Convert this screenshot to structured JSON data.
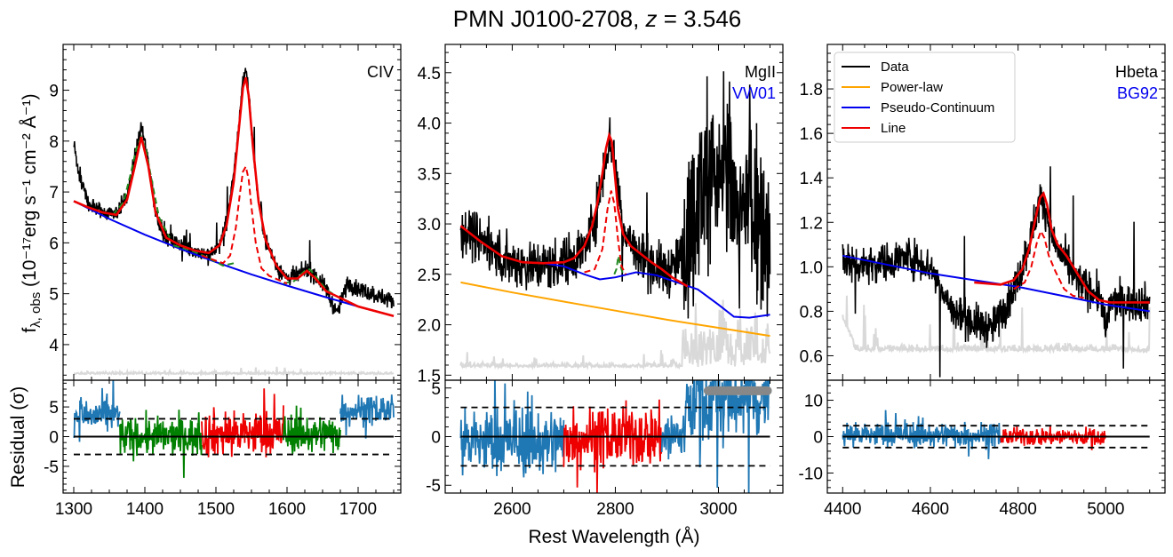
{
  "figure": {
    "title_prefix": "PMN J0100-2708, ",
    "title_z": "z",
    "title_suffix": " = 3.546",
    "xlabel": "Rest Wavelength (Å)",
    "ylabel_main": "f",
    "ylabel_sub": "λ, obs",
    "ylabel_units": " (10⁻¹⁷erg s⁻¹ cm⁻² Å⁻¹)",
    "residual_ylabel": "Residual (σ)"
  },
  "colors": {
    "data": "#000000",
    "powerlaw": "#ffa500",
    "pseudo": "#0000ee",
    "line": "#ee0000",
    "broad_comp": "#228b22",
    "narrow_comp": "#ee0000",
    "error": "#d9d9d9",
    "residual": "#1f77b4",
    "residual_line": "#ee0000",
    "residual_green": "#008000",
    "masked": "#888888"
  },
  "legend": {
    "entries": [
      {
        "label": "Data",
        "color": "#000000"
      },
      {
        "label": "Power-law",
        "color": "#ffa500"
      },
      {
        "label": "Pseudo-Continuum",
        "color": "#0000ee"
      },
      {
        "label": "Line",
        "color": "#ee0000"
      }
    ]
  },
  "chart_data": [
    {
      "type": "line",
      "panel": "CIV",
      "line_label": "CIV",
      "template_label": "",
      "xlim": [
        1285,
        1760
      ],
      "ylim": [
        3.3,
        9.9
      ],
      "xticks": [
        1300,
        1400,
        1500,
        1600,
        1700
      ],
      "yticks": [
        4,
        5,
        6,
        7,
        8,
        9
      ],
      "continuum": {
        "x": [
          1300,
          1350,
          1400,
          1450,
          1500,
          1550,
          1600,
          1650,
          1700,
          1750
        ],
        "y": [
          6.82,
          6.47,
          6.16,
          5.88,
          5.62,
          5.38,
          5.16,
          4.95,
          4.75,
          4.56
        ]
      },
      "model": {
        "x": [
          1300,
          1320,
          1340,
          1360,
          1375,
          1385,
          1395,
          1405,
          1415,
          1430,
          1450,
          1470,
          1490,
          1505,
          1515,
          1525,
          1532,
          1538,
          1542,
          1546,
          1552,
          1560,
          1570,
          1585,
          1600,
          1615,
          1628,
          1640,
          1655,
          1670,
          1700,
          1750
        ],
        "y": [
          6.82,
          6.7,
          6.6,
          6.55,
          6.85,
          7.45,
          8.08,
          7.5,
          6.6,
          6.1,
          5.95,
          5.85,
          5.8,
          5.95,
          6.35,
          7.2,
          8.2,
          9.05,
          9.25,
          8.9,
          7.9,
          6.8,
          6.05,
          5.55,
          5.3,
          5.3,
          5.45,
          5.3,
          5.05,
          4.95,
          4.75,
          4.56
        ]
      },
      "narrow": {
        "x": [
          1480,
          1510,
          1520,
          1528,
          1534,
          1538,
          1542,
          1546,
          1550,
          1556,
          1564,
          1575,
          1600
        ],
        "y": [
          5.75,
          5.6,
          5.75,
          6.3,
          7.0,
          7.4,
          7.5,
          7.25,
          6.7,
          6.0,
          5.5,
          5.35,
          5.2
        ]
      },
      "broad_components": [
        {
          "x": [
            1355,
            1370,
            1380,
            1388,
            1395,
            1402,
            1410,
            1420,
            1435
          ],
          "y": [
            6.55,
            6.8,
            7.35,
            7.85,
            8.08,
            7.8,
            7.2,
            6.5,
            6.1
          ]
        },
        {
          "x": [
            1440,
            1465,
            1490,
            1510,
            1525
          ],
          "y": [
            5.95,
            5.85,
            5.7,
            5.55,
            5.6
          ]
        },
        {
          "x": [
            1595,
            1610,
            1625,
            1632,
            1640,
            1655,
            1670
          ],
          "y": [
            5.2,
            5.25,
            5.45,
            5.48,
            5.35,
            5.08,
            4.95
          ]
        }
      ],
      "data": {
        "anchors_x": [
          1300,
          1310,
          1320,
          1340,
          1360,
          1375,
          1385,
          1395,
          1405,
          1415,
          1430,
          1450,
          1470,
          1490,
          1505,
          1515,
          1525,
          1532,
          1538,
          1542,
          1546,
          1552,
          1560,
          1570,
          1585,
          1600,
          1615,
          1628,
          1640,
          1655,
          1670,
          1685,
          1700,
          1720,
          1750
        ],
        "anchors_y": [
          7.9,
          7.2,
          6.8,
          6.6,
          6.6,
          6.9,
          7.6,
          8.3,
          7.6,
          6.6,
          6.1,
          5.95,
          5.85,
          5.75,
          5.95,
          6.4,
          7.3,
          8.3,
          9.2,
          9.45,
          9.0,
          7.9,
          6.8,
          6.05,
          5.55,
          5.3,
          5.35,
          5.5,
          5.35,
          5.1,
          4.6,
          5.2,
          5.1,
          5.0,
          4.85
        ],
        "noise": 0.12
      },
      "error_level": 3.42,
      "residual": {
        "ylim": [
          -9.5,
          9.5
        ],
        "yticks": [
          -5,
          0,
          5
        ],
        "threshold": 3,
        "segments": [
          {
            "x0": 1300,
            "x1": 1365,
            "color": "blue",
            "mean": 3.5,
            "spread": 2.2
          },
          {
            "x0": 1365,
            "x1": 1480,
            "color": "green",
            "mean": 0.0,
            "spread": 2.3
          },
          {
            "x0": 1480,
            "x1": 1595,
            "color": "red",
            "mean": 0.5,
            "spread": 2.8
          },
          {
            "x0": 1595,
            "x1": 1675,
            "color": "green",
            "mean": 0.5,
            "spread": 2.3
          },
          {
            "x0": 1675,
            "x1": 1750,
            "color": "blue",
            "mean": 4.5,
            "spread": 1.8
          }
        ]
      }
    },
    {
      "type": "line",
      "panel": "MgII",
      "line_label": "MgII",
      "template_label": "VW01",
      "xlim": [
        2470,
        3125
      ],
      "ylim": [
        1.45,
        4.78
      ],
      "xticks": [
        2600,
        2800,
        3000
      ],
      "yticks": [
        1.5,
        2.0,
        2.5,
        3.0,
        3.5,
        4.0,
        4.5
      ],
      "powerlaw": {
        "x": [
          2500,
          2600,
          2700,
          2800,
          2900,
          3000,
          3100
        ],
        "y": [
          2.42,
          2.32,
          2.23,
          2.14,
          2.05,
          1.97,
          1.89
        ]
      },
      "pseudo": {
        "x": [
          2500,
          2540,
          2580,
          2620,
          2660,
          2700,
          2740,
          2770,
          2800,
          2840,
          2880,
          2920,
          2960,
          3000,
          3030,
          3060,
          3100
        ],
        "y": [
          2.98,
          2.82,
          2.68,
          2.62,
          2.61,
          2.58,
          2.5,
          2.45,
          2.47,
          2.52,
          2.49,
          2.42,
          2.35,
          2.2,
          2.08,
          2.07,
          2.1
        ]
      },
      "model": {
        "x": [
          2500,
          2540,
          2580,
          2620,
          2660,
          2700,
          2720,
          2740,
          2755,
          2765,
          2775,
          2782,
          2788,
          2793,
          2798,
          2805,
          2815,
          2830,
          2850,
          2870,
          2890,
          2910,
          2940
        ],
        "y": [
          2.98,
          2.82,
          2.68,
          2.62,
          2.61,
          2.62,
          2.66,
          2.78,
          2.98,
          3.2,
          3.5,
          3.75,
          3.88,
          3.82,
          3.55,
          3.15,
          2.9,
          2.78,
          2.7,
          2.62,
          2.55,
          2.47,
          2.38
        ]
      },
      "narrow": {
        "x": [
          2740,
          2760,
          2775,
          2785,
          2792,
          2798,
          2805,
          2812,
          2820
        ],
        "y": [
          2.52,
          2.55,
          2.75,
          3.15,
          3.33,
          3.2,
          2.85,
          2.58,
          2.5
        ]
      },
      "broad_components": [
        {
          "x": [
            2798,
            2802,
            2806,
            2810,
            2815
          ],
          "y": [
            2.5,
            2.55,
            2.68,
            2.58,
            2.5
          ]
        }
      ],
      "data": {
        "anchors_x": [
          2500,
          2540,
          2580,
          2620,
          2660,
          2700,
          2740,
          2765,
          2780,
          2790,
          2800,
          2815,
          2840,
          2870,
          2900,
          2920,
          2950,
          2980,
          3000,
          3020,
          3040,
          3060,
          3080,
          3100
        ],
        "anchors_y": [
          2.95,
          2.85,
          2.65,
          2.6,
          2.58,
          2.62,
          2.75,
          3.15,
          3.65,
          3.85,
          3.6,
          2.95,
          2.72,
          2.6,
          2.52,
          2.6,
          3.0,
          3.6,
          3.3,
          3.6,
          2.9,
          3.4,
          3.0,
          2.6
        ],
        "noise": 0.18,
        "spike_zone": [
          2930,
          3100
        ]
      },
      "error_level": 1.58,
      "masked_points": {
        "x": [
          2980,
          3095
        ],
        "y": 4.72
      },
      "residual": {
        "ylim": [
          -5.8,
          5.8
        ],
        "yticks": [
          -5,
          0,
          5
        ],
        "threshold": 3,
        "segments": [
          {
            "x0": 2500,
            "x1": 2700,
            "color": "blue",
            "mean": -0.5,
            "spread": 2.5
          },
          {
            "x0": 2700,
            "x1": 2890,
            "color": "red",
            "mean": 0.0,
            "spread": 2.2
          },
          {
            "x0": 2890,
            "x1": 2935,
            "color": "blue",
            "mean": 0.0,
            "spread": 2.2
          },
          {
            "x0": 2935,
            "x1": 3100,
            "color": "blue",
            "mean": 4.0,
            "spread": 3.5
          }
        ]
      }
    },
    {
      "type": "line",
      "panel": "Hbeta",
      "line_label": "Hbeta",
      "template_label": "BG92",
      "xlim": [
        4365,
        5135
      ],
      "ylim": [
        0.49,
        2.0
      ],
      "xticks": [
        4400,
        4600,
        4800,
        5000
      ],
      "yticks": [
        0.6,
        0.8,
        1.0,
        1.2,
        1.4,
        1.6,
        1.8
      ],
      "pseudo": {
        "x": [
          4400,
          4500,
          4600,
          4700,
          4800,
          4900,
          5000,
          5100
        ],
        "y": [
          1.05,
          1.01,
          0.97,
          0.94,
          0.91,
          0.87,
          0.83,
          0.8
        ]
      },
      "model": {
        "x": [
          4700,
          4760,
          4790,
          4810,
          4825,
          4840,
          4850,
          4858,
          4866,
          4876,
          4890,
          4910,
          4935,
          4960,
          4985,
          5010,
          5040,
          5100
        ],
        "y": [
          0.93,
          0.92,
          0.94,
          0.99,
          1.08,
          1.22,
          1.31,
          1.33,
          1.28,
          1.17,
          1.1,
          1.05,
          0.97,
          0.89,
          0.85,
          0.84,
          0.84,
          0.84
        ]
      },
      "narrow": {
        "x": [
          4790,
          4815,
          4830,
          4843,
          4852,
          4860,
          4870,
          4885,
          4905,
          4925,
          4950
        ],
        "y": [
          0.9,
          0.93,
          1.0,
          1.11,
          1.16,
          1.13,
          1.05,
          0.98,
          0.9,
          0.87,
          0.86
        ]
      },
      "broad_components": [],
      "data": {
        "anchors_x": [
          4400,
          4420,
          4450,
          4500,
          4550,
          4600,
          4650,
          4700,
          4740,
          4780,
          4810,
          4830,
          4850,
          4860,
          4880,
          4900,
          4930,
          4960,
          4990,
          5000,
          5010,
          5100
        ],
        "anchors_y": [
          1.05,
          1.0,
          1.02,
          1.02,
          1.05,
          1.0,
          0.8,
          0.75,
          0.72,
          0.85,
          1.0,
          1.15,
          1.3,
          1.28,
          1.12,
          1.05,
          0.95,
          0.9,
          0.86,
          0.7,
          0.84,
          0.84
        ],
        "noise": 0.06
      },
      "error_level": 0.62,
      "residual": {
        "ylim": [
          -15.5,
          15.5
        ],
        "yticks": [
          -10,
          0,
          10
        ],
        "threshold": 3,
        "segments": [
          {
            "x0": 4400,
            "x1": 4760,
            "color": "blue",
            "mean": 0.5,
            "spread": 2.5
          },
          {
            "x0": 4760,
            "x1": 5000,
            "color": "red",
            "mean": 0.0,
            "spread": 1.8
          }
        ]
      }
    }
  ]
}
